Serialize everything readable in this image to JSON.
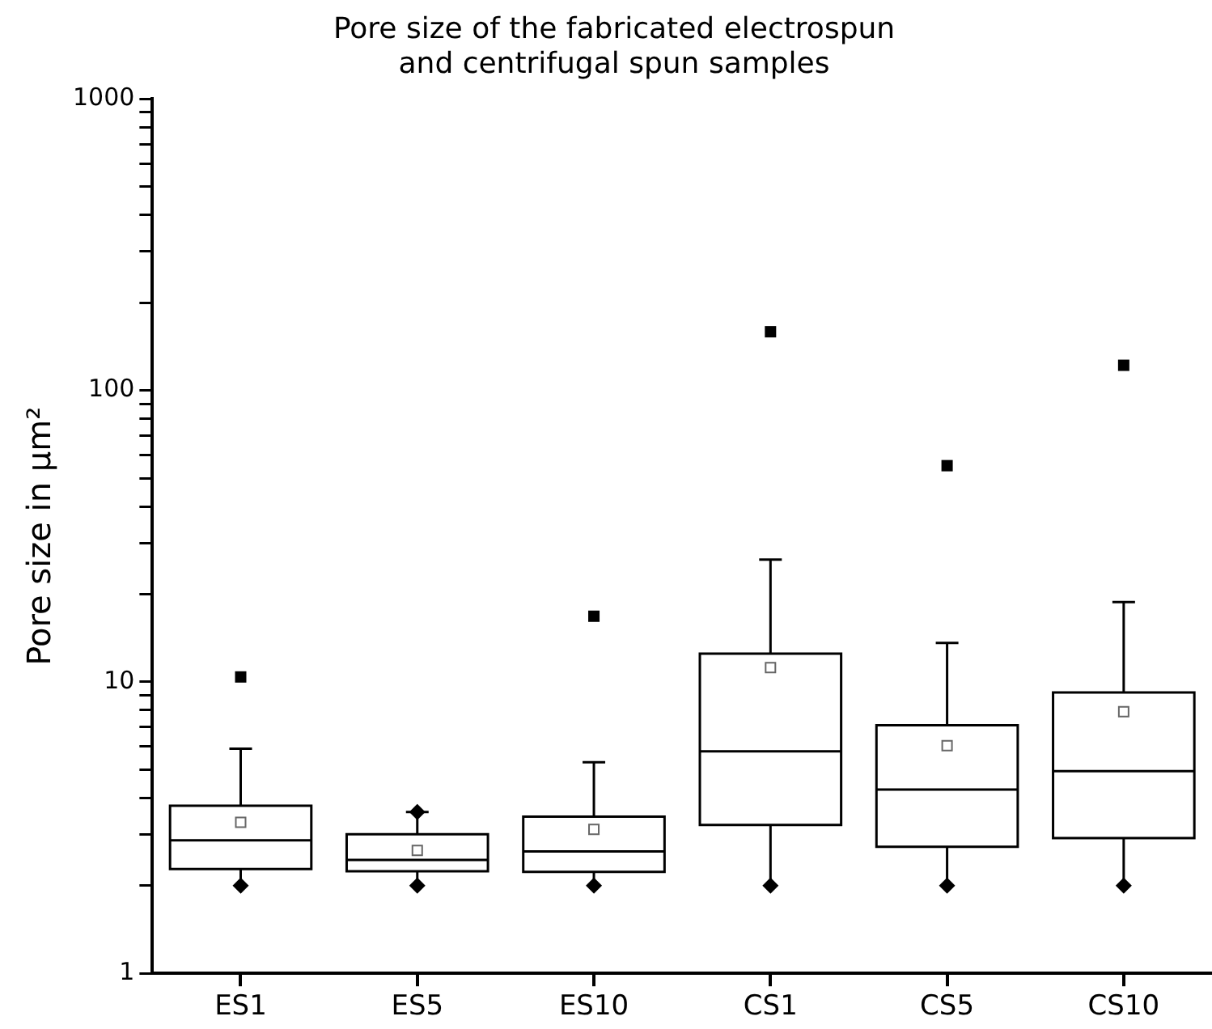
{
  "chart_data": {
    "type": "box",
    "title": "Pore size of the fabricated electrospun\nand centrifugal spun samples",
    "ylabel": "Pore size in µm²",
    "categories": [
      "ES1",
      "ES5",
      "ES10",
      "CS1",
      "CS5",
      "CS10"
    ],
    "boxes": [
      {
        "low": 2,
        "q1": 2.28,
        "median": 2.86,
        "q3": 3.76,
        "high": 5.9,
        "mean": 3.3,
        "outliers": [
          10.4
        ]
      },
      {
        "low": 2,
        "q1": 2.24,
        "median": 2.45,
        "q3": 3.0,
        "high": 3.58,
        "mean": 2.64
      },
      {
        "low": 2,
        "q1": 2.23,
        "median": 2.62,
        "q3": 3.45,
        "high": 5.3,
        "mean": 3.12,
        "outliers": [
          16.8
        ]
      },
      {
        "low": 2,
        "q1": 3.23,
        "median": 5.78,
        "q3": 12.5,
        "high": 26.3,
        "mean": 11.2,
        "outliers": [
          159
        ]
      },
      {
        "low": 2,
        "q1": 2.72,
        "median": 4.27,
        "q3": 7.1,
        "high": 13.6,
        "mean": 6.04,
        "outliers": [
          55.2
        ]
      },
      {
        "low": 2,
        "q1": 2.91,
        "median": 4.94,
        "q3": 9.2,
        "high": 18.8,
        "mean": 7.9,
        "outliers": [
          122
        ]
      }
    ],
    "series": [
      {
        "type": "scatter",
        "x": [
          "ES1",
          "ES5",
          "ES10",
          "CS1",
          "CS5",
          "CS10"
        ],
        "values": [
          2,
          2,
          2,
          2,
          2,
          2
        ],
        "color": "#000000"
      },
      {
        "type": "scatter",
        "x": [
          "ES5"
        ],
        "values": [
          3.58
        ],
        "color": "#000000"
      }
    ],
    "marker": "diamond",
    "color": "#000000",
    "log": true,
    "ylim": [
      1,
      1000
    ],
    "yticks": [
      1,
      {
        "value": 2,
        "label": null
      },
      {
        "value": 3,
        "label": null
      },
      {
        "value": 4,
        "label": null
      },
      {
        "value": 5,
        "label": null
      },
      {
        "value": 6,
        "label": null
      },
      {
        "value": 7,
        "label": null
      },
      {
        "value": 8,
        "label": null
      },
      {
        "value": 9,
        "label": null
      },
      10,
      {
        "value": 20,
        "label": null
      },
      {
        "value": 30,
        "label": null
      },
      {
        "value": 40,
        "label": null
      },
      {
        "value": 50,
        "label": null
      },
      {
        "value": 60,
        "label": null
      },
      {
        "value": 70,
        "label": null
      },
      {
        "value": 80,
        "label": null
      },
      {
        "value": 90,
        "label": null
      },
      100,
      {
        "value": 200,
        "label": null
      },
      {
        "value": 300,
        "label": null
      },
      {
        "value": 400,
        "label": null
      },
      {
        "value": 500,
        "label": null
      },
      {
        "value": 600,
        "label": null
      },
      {
        "value": 700,
        "label": null
      },
      {
        "value": 800,
        "label": null
      },
      {
        "value": 900,
        "label": null
      },
      1000
    ],
    "grid": false,
    "legend": false
  }
}
